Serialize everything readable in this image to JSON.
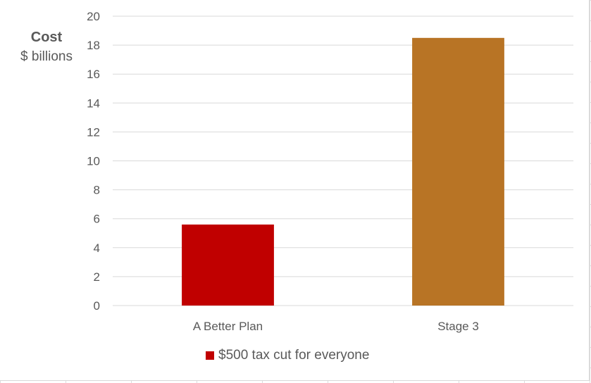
{
  "chart_data": {
    "type": "bar",
    "categories": [
      "A Better Plan",
      "Stage 3"
    ],
    "series": [
      {
        "name": "$500 tax cut for everyone",
        "values": [
          5.6,
          18.5
        ],
        "colors": [
          "#c00000",
          "#b87425"
        ]
      }
    ],
    "title": "",
    "ylabel": "Cost",
    "ylabel_sub": "$ billions",
    "xlabel": "",
    "ylim": [
      0,
      20
    ],
    "yticks": [
      0,
      2,
      4,
      6,
      8,
      10,
      12,
      14,
      16,
      18,
      20
    ],
    "grid": true,
    "legend_position": "bottom",
    "legend_color": "#c00000",
    "gridline_color": "#d9d9d9",
    "label_color": "#595959"
  }
}
